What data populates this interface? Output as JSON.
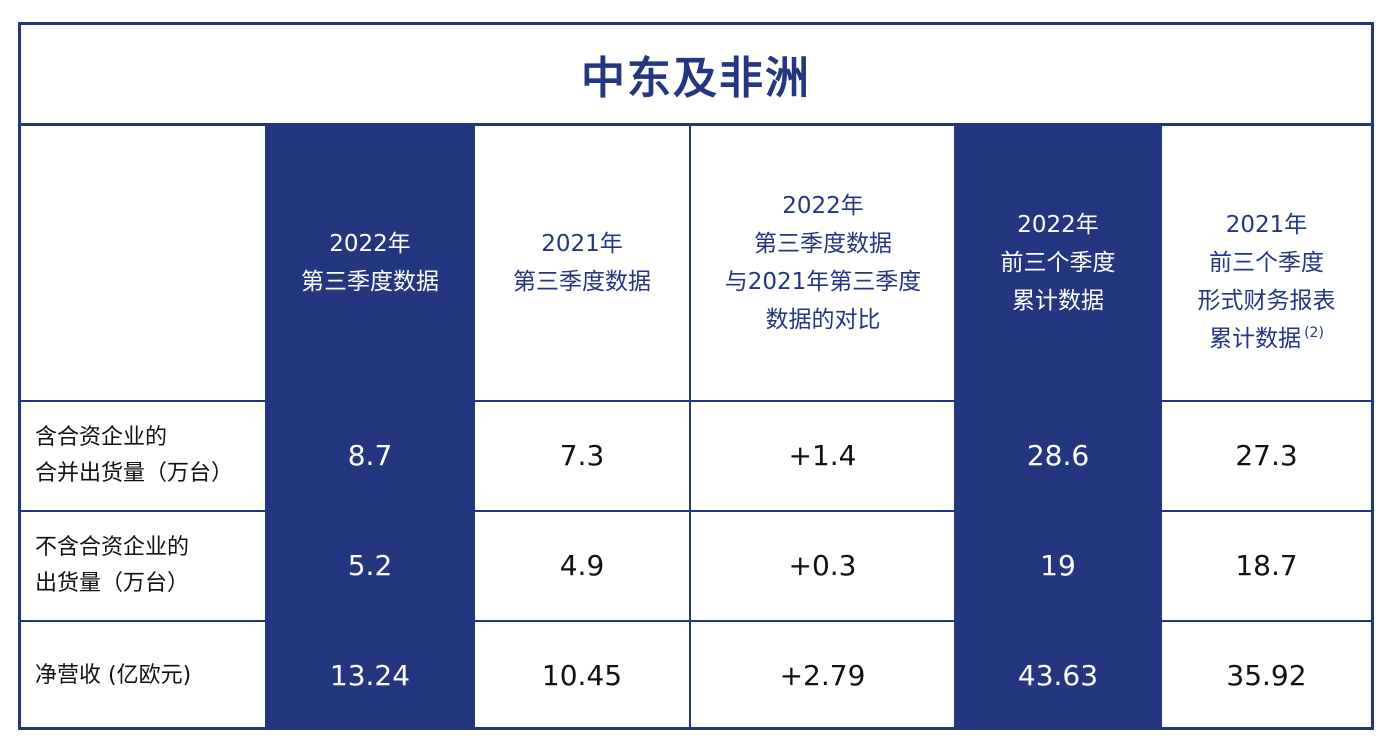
{
  "title": "中东及非洲",
  "colors": {
    "primary": "#253680",
    "background": "#ffffff",
    "text": "#111111"
  },
  "columns": [
    {
      "label": "2022年\n第三季度数据"
    },
    {
      "label": "2021年\n第三季度数据"
    },
    {
      "label": "2022年\n第三季度数据\n与2021年第三季度\n数据的对比"
    },
    {
      "label": "2022年\n前三个季度\n累计数据"
    },
    {
      "label": "2021年\n前三个季度\n形式财务报表\n累计数据",
      "note": "(2)"
    }
  ],
  "rows": [
    {
      "label": "含合资企业的\n合并出货量（万台）",
      "values": [
        "8.7",
        "7.3",
        "+1.4",
        "28.6",
        "27.3"
      ]
    },
    {
      "label": "不含合资企业的\n出货量（万台）",
      "values": [
        "5.2",
        "4.9",
        "+0.3",
        "19",
        "18.7"
      ]
    },
    {
      "label": "净营收 (亿欧元)",
      "values": [
        "13.24",
        "10.45",
        "+2.79",
        "43.63",
        "35.92"
      ]
    }
  ]
}
